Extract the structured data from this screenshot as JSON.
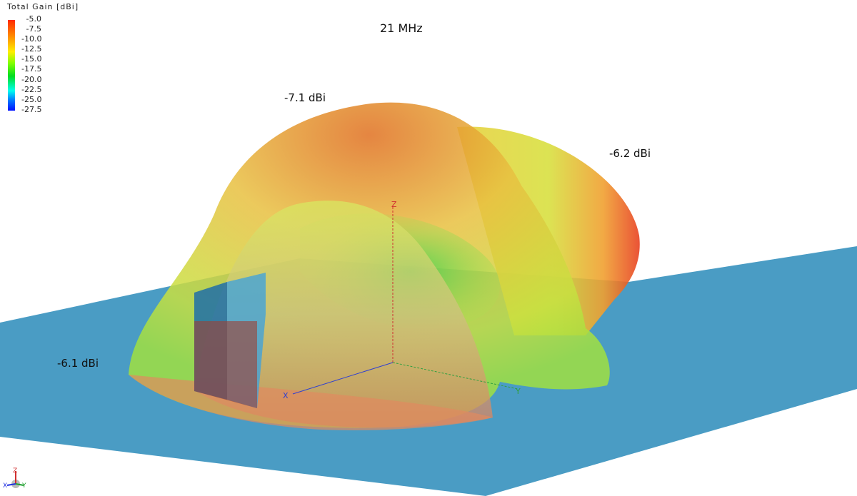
{
  "title": "21 MHz",
  "legend": {
    "title": "Total Gain [dBi]",
    "ticks": [
      "-5.0",
      "-7.5",
      "-10.0",
      "-12.5",
      "-15.0",
      "-17.5",
      "-20.0",
      "-22.5",
      "-25.0",
      "-27.5"
    ],
    "colors": [
      "#ff2a00",
      "#ff8c00",
      "#ffee00",
      "#7fff00",
      "#00dd22",
      "#00ffee",
      "#0080ff",
      "#0010ff"
    ]
  },
  "annotations": [
    {
      "text": "-7.1 dBi"
    },
    {
      "text": "-6.2 dBi"
    },
    {
      "text": "-6.1 dBi"
    }
  ],
  "axes": {
    "x": "X",
    "y": "Y",
    "z": "Z"
  },
  "colors": {
    "ground_plane": "#4a9cc4",
    "structure": "#1f6fa8"
  }
}
